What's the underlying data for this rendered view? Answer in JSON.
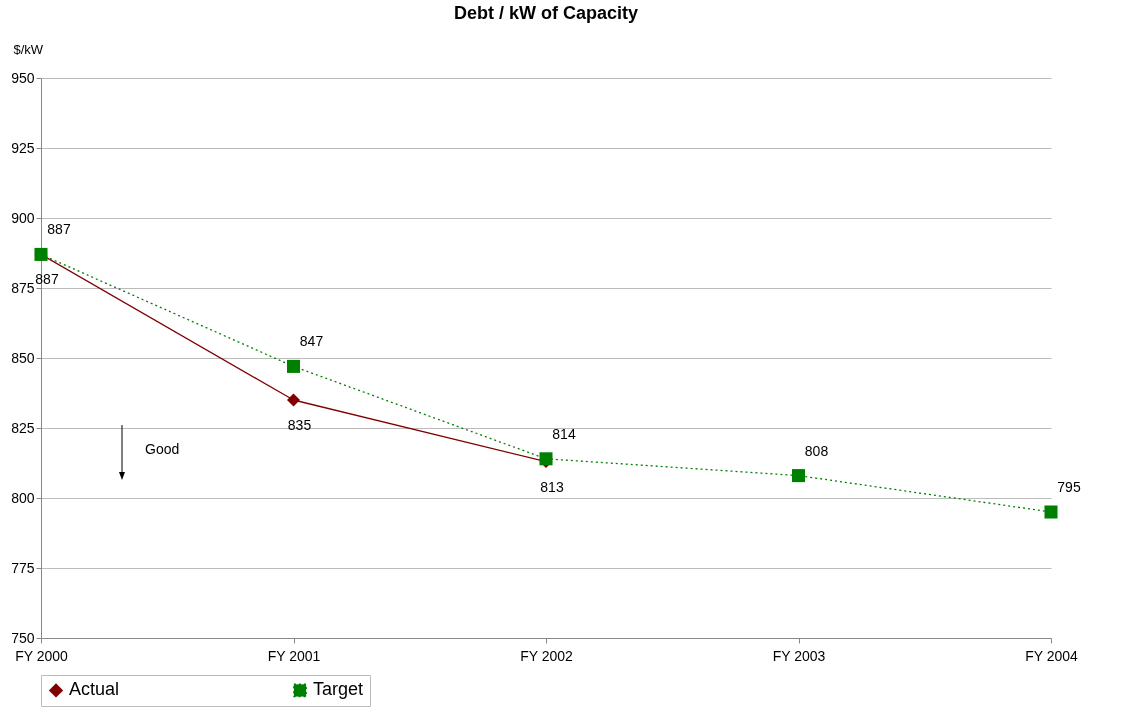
{
  "chart_data": {
    "type": "line",
    "title": "Debt / kW of Capacity",
    "ylabel": "$/kW",
    "categories": [
      "FY 2000",
      "FY 2001",
      "FY 2002",
      "FY 2003",
      "FY 2004"
    ],
    "series": [
      {
        "name": "Actual",
        "color": "#800000",
        "marker": "diamond",
        "line_style": "solid",
        "values": [
          887,
          835,
          813,
          null,
          null
        ]
      },
      {
        "name": "Target",
        "color": "#008000",
        "marker": "square",
        "line_style": "dotted",
        "values": [
          887,
          847,
          814,
          808,
          795
        ]
      }
    ],
    "ylim": [
      750,
      950
    ],
    "yticks": [
      750,
      775,
      800,
      825,
      850,
      875,
      900,
      925,
      950
    ],
    "grid": "y",
    "legend": "bottom",
    "data_labels": true,
    "annotations": [
      "Good"
    ]
  }
}
